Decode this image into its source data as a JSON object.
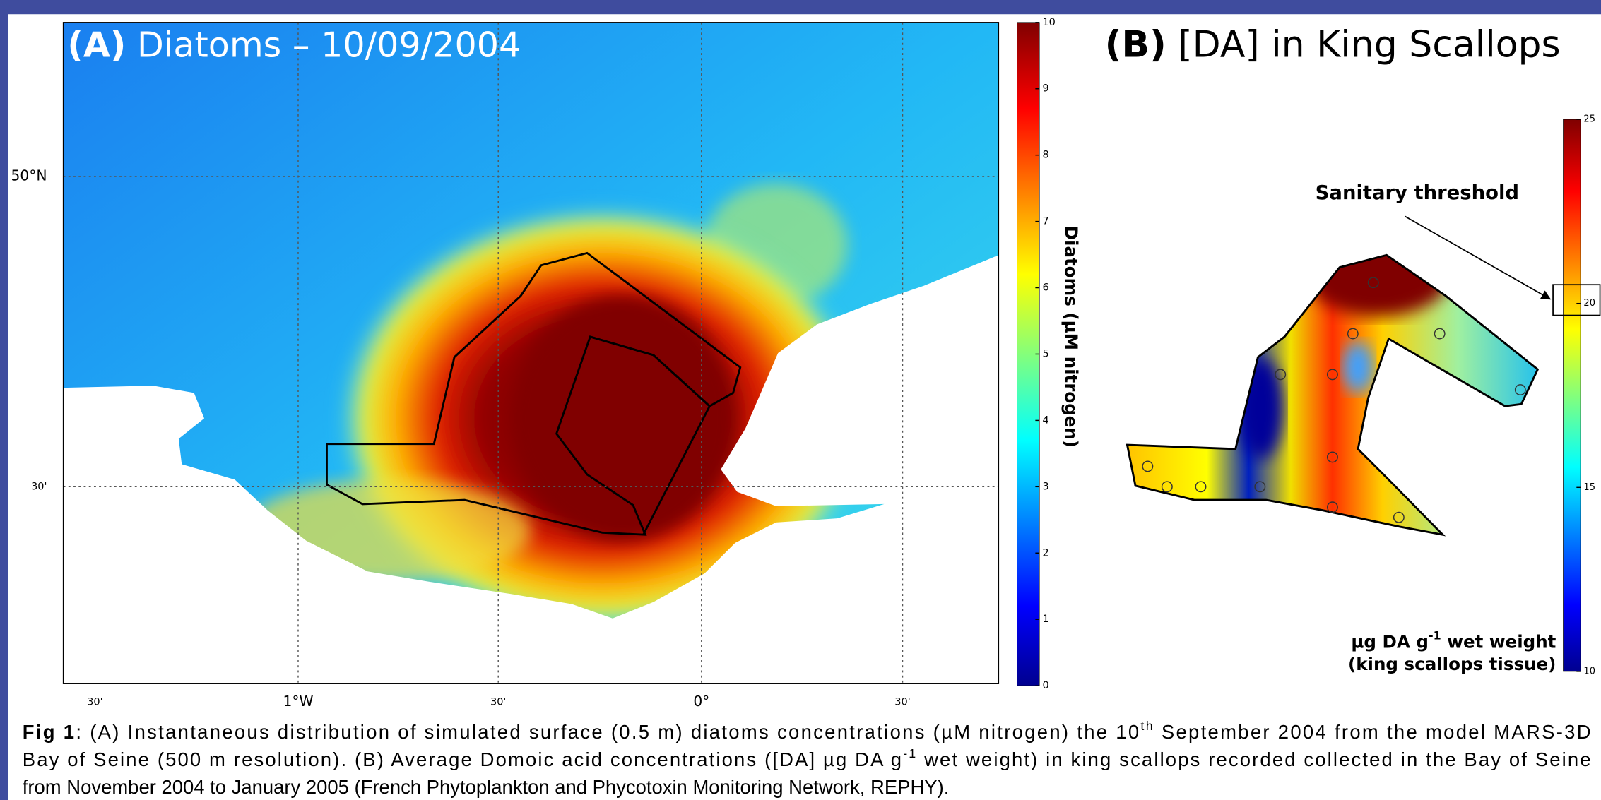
{
  "panel_a": {
    "label": "(A)",
    "title": "Diatoms – 10/09/2004",
    "lat_ticks": [
      "50°N",
      "30'"
    ],
    "lon_ticks": [
      "30'",
      "1°W",
      "30'",
      "0°",
      "30'"
    ],
    "colorbar": {
      "ticks": [
        0,
        1,
        2,
        3,
        4,
        5,
        6,
        7,
        8,
        9,
        10
      ],
      "label": "Diatoms (µM nitrogen)"
    }
  },
  "panel_b": {
    "label": "(B)",
    "title": "[DA] in King Scallops",
    "annotation": "Sanitary threshold",
    "colorbar": {
      "ticks": [
        10,
        15,
        20,
        25
      ],
      "label_lines": [
        [
          {
            "text": "µg DA g"
          },
          {
            "text": "-1",
            "style": "sup"
          },
          {
            "text": " wet weight"
          }
        ],
        [
          {
            "text": "(king scallops tissue)"
          }
        ]
      ]
    }
  },
  "caption": [
    [
      {
        "text": "Fig 1",
        "style": "bold"
      },
      {
        "text": ": (A) Instantaneous distribution of simulated surface (0.5 m) diatoms concentrations (µM nitrogen) the 10"
      },
      {
        "text": "th",
        "style": "sup"
      },
      {
        "text": " September 2004 from the model MARS-3D"
      }
    ],
    [
      {
        "text": "Bay of Seine (500 m resolution). (B) Average Domoic acid concentrations ([DA] µg DA g"
      },
      {
        "text": "-1",
        "style": "sup"
      },
      {
        "text": " wet weight) in king scallops recorded collected in the Bay of Seine"
      }
    ],
    [
      {
        "text": "from November 2004 to January 2005 (French Phytoplankton and Phycotoxin Monitoring Network, REPHY)."
      }
    ]
  ]
}
